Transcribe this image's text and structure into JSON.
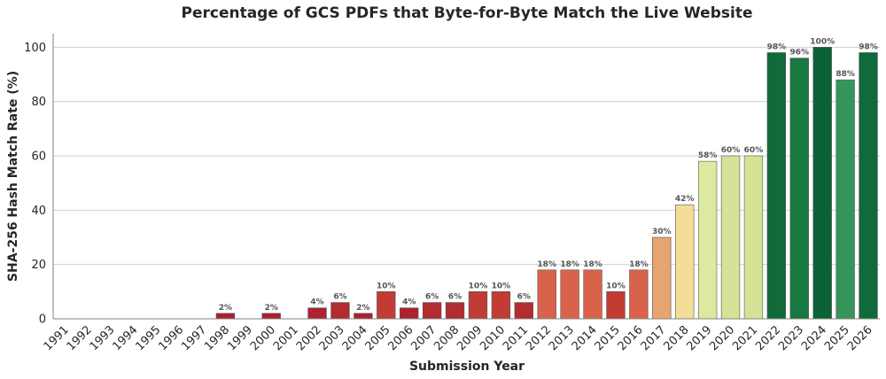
{
  "chart_data": {
    "type": "bar",
    "title": "Percentage of GCS PDFs that Byte-for-Byte Match the Live Website",
    "xlabel": "Submission Year",
    "ylabel": "SHA-256 Hash Match Rate (%)",
    "ylim": [
      0,
      105
    ],
    "yticks": [
      0,
      20,
      40,
      60,
      80,
      100
    ],
    "grid": "y",
    "categories": [
      "1991",
      "1992",
      "1993",
      "1994",
      "1995",
      "1996",
      "1997",
      "1998",
      "1999",
      "2000",
      "2001",
      "2002",
      "2003",
      "2004",
      "2005",
      "2006",
      "2007",
      "2008",
      "2009",
      "2010",
      "2011",
      "2012",
      "2013",
      "2014",
      "2015",
      "2016",
      "2017",
      "2018",
      "2019",
      "2020",
      "2021",
      "2022",
      "2023",
      "2024",
      "2025",
      "2026"
    ],
    "values": [
      0,
      0,
      0,
      0,
      0,
      0,
      0,
      2,
      0,
      2,
      0,
      4,
      6,
      2,
      10,
      4,
      6,
      6,
      10,
      10,
      6,
      18,
      18,
      18,
      10,
      18,
      30,
      42,
      58,
      60,
      60,
      98,
      96,
      100,
      88,
      98
    ],
    "data_labels": [
      "",
      "",
      "",
      "",
      "",
      "",
      "",
      "2%",
      "",
      "2%",
      "",
      "4%",
      "6%",
      "2%",
      "10%",
      "4%",
      "6%",
      "6%",
      "10%",
      "10%",
      "6%",
      "18%",
      "18%",
      "18%",
      "10%",
      "18%",
      "30%",
      "42%",
      "58%",
      "60%",
      "60%",
      "98%",
      "96%",
      "100%",
      "88%",
      "98%"
    ],
    "colors": [
      "#a50026",
      "#a50026",
      "#a50026",
      "#a50026",
      "#a50026",
      "#a50026",
      "#a50026",
      "#a8202d",
      "#a50026",
      "#a8202d",
      "#a50026",
      "#ae2230",
      "#b32c31",
      "#a8202d",
      "#c13d33",
      "#ae2230",
      "#b32c31",
      "#b32c31",
      "#c13d33",
      "#c13d33",
      "#b32c31",
      "#d9634a",
      "#d9634a",
      "#d9634a",
      "#c13d33",
      "#d9634a",
      "#e8a46e",
      "#f3de99",
      "#dee9a0",
      "#d4e396",
      "#d4e396",
      "#106a3a",
      "#177940",
      "#0d6136",
      "#36955a",
      "#106a3a"
    ]
  }
}
